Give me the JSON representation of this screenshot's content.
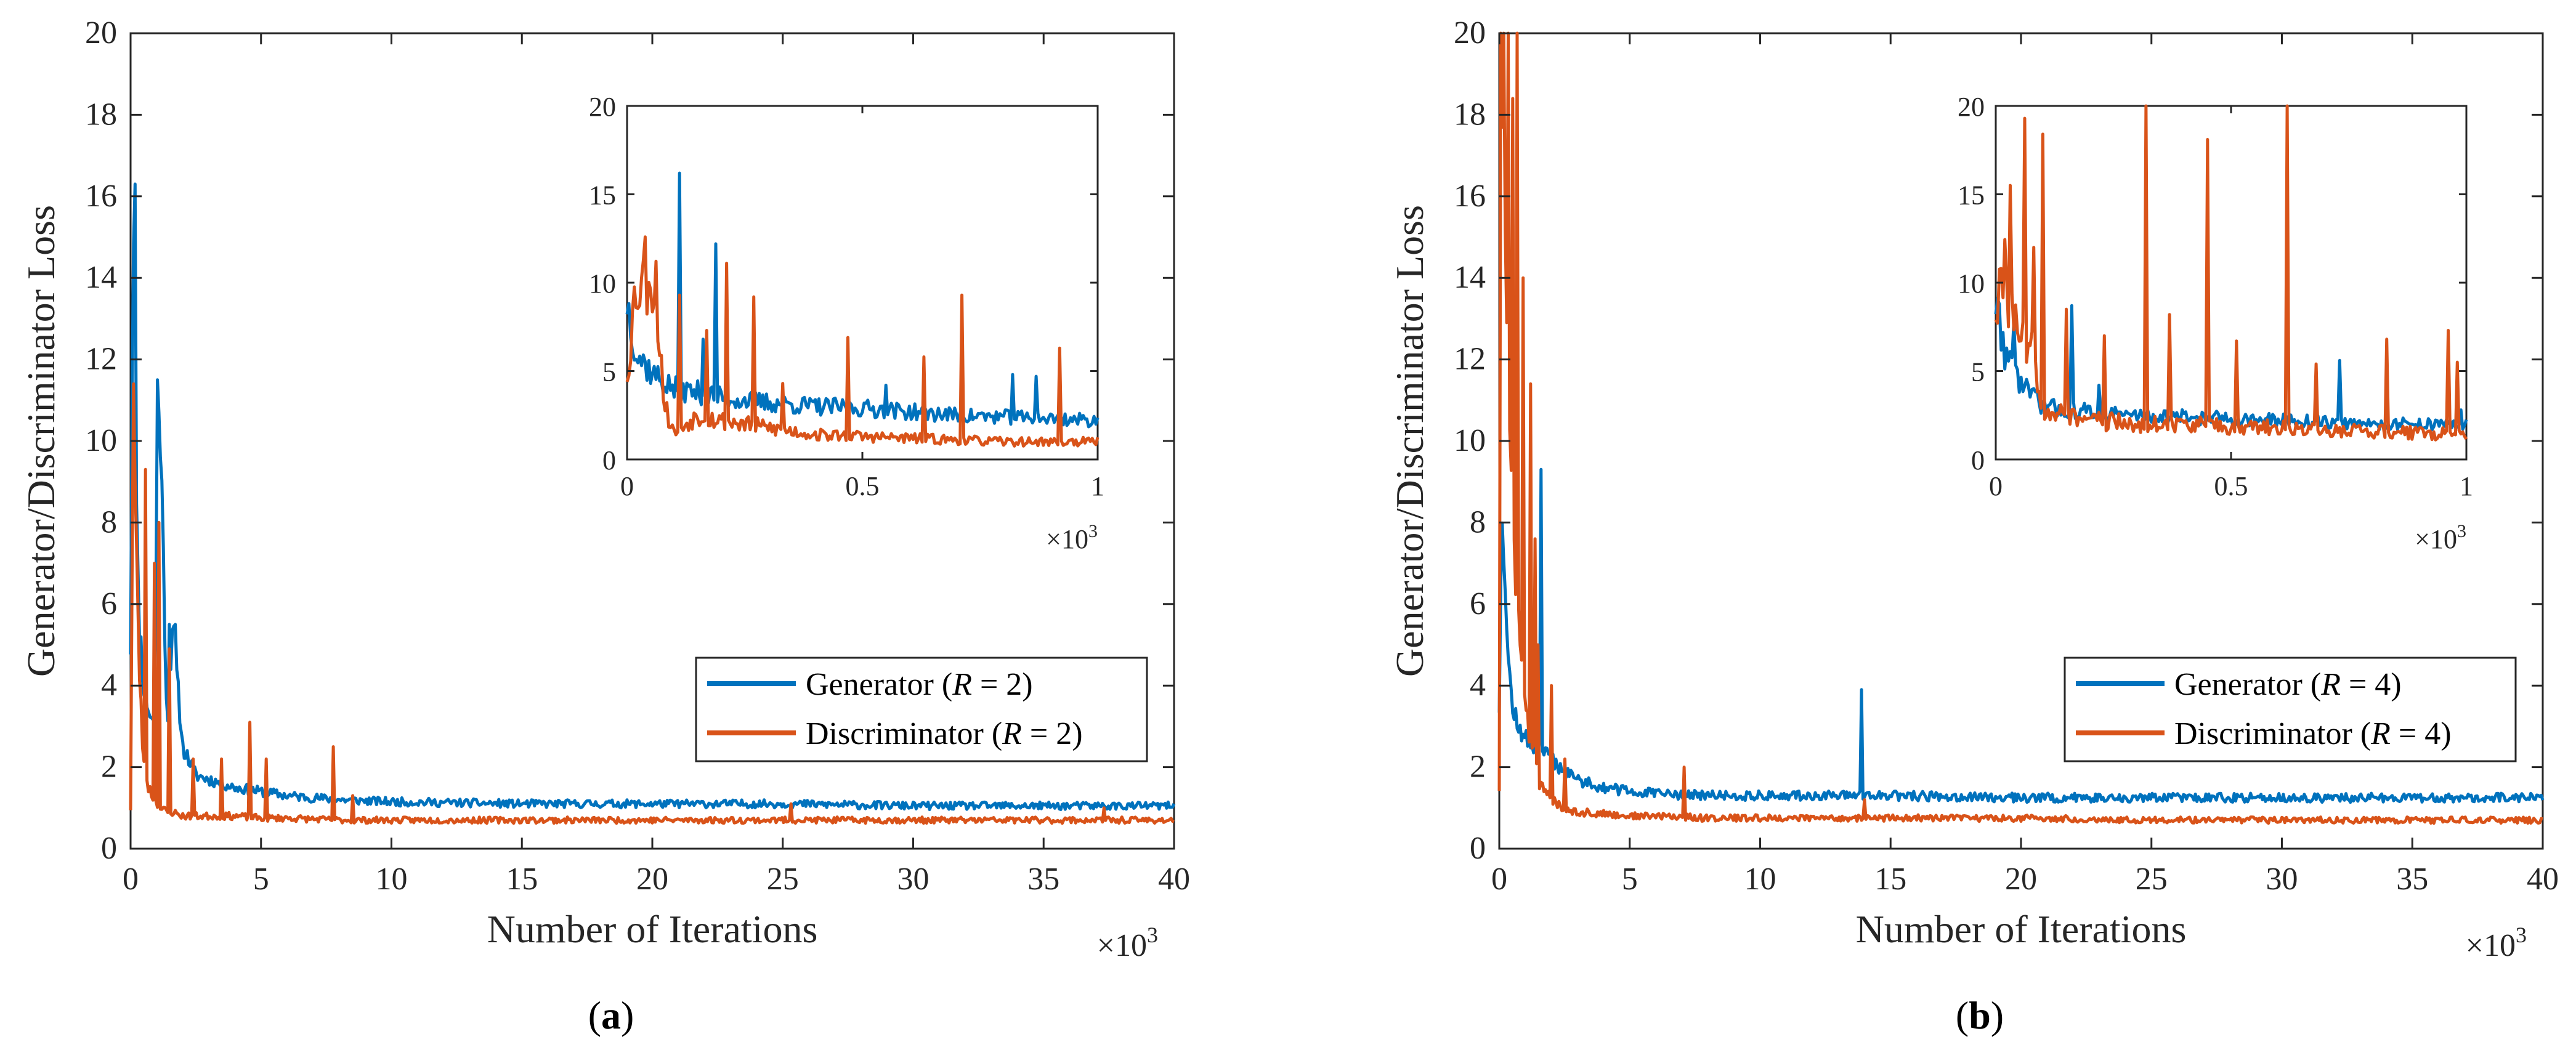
{
  "colors": {
    "generator": "#0072BD",
    "discriminator": "#D95319",
    "axis": "#262626",
    "background": "#ffffff"
  },
  "chart_data": [
    {
      "type": "line",
      "caption_label": "a",
      "ylabel": "Generator/Discriminator Loss",
      "xlabel": "Number of Iterations",
      "x_multiplier_base": "×10",
      "x_multiplier_exp": "3",
      "xlim": [
        0,
        40
      ],
      "ylim": [
        0,
        20
      ],
      "xticks": [
        "0",
        "5",
        "10",
        "15",
        "20",
        "25",
        "30",
        "35",
        "40"
      ],
      "yticks": [
        "0",
        "2",
        "4",
        "6",
        "8",
        "10",
        "12",
        "14",
        "16",
        "18",
        "20"
      ],
      "legend_placement": "lower-right",
      "series": [
        {
          "name": "Generator",
          "legend_label": "Generator (",
          "legend_param": "R",
          "legend_value": " = 2)",
          "x": [
            0,
            0.1,
            0.2,
            0.3,
            0.5,
            0.7,
            0.9,
            1.1,
            1.4,
            1.6,
            2,
            2.5,
            3,
            4,
            5,
            6,
            8,
            10,
            15,
            20,
            25,
            30,
            35,
            40
          ],
          "y": [
            5,
            16.3,
            9,
            6,
            4,
            3.4,
            3,
            11.5,
            3,
            5.5,
            2.5,
            1.8,
            1.7,
            1.5,
            1.4,
            1.3,
            1.2,
            1.15,
            1.1,
            1.1,
            1.1,
            1.05,
            1.05,
            1.05
          ],
          "spikes": [
            [
              0.15,
              16.3
            ],
            [
              1.05,
              11.5
            ],
            [
              1.5,
              5.5
            ],
            [
              1.7,
              5.5
            ]
          ]
        },
        {
          "name": "Discriminator",
          "legend_label": "Discriminator (",
          "legend_param": "R",
          "legend_value": " = 2)",
          "x": [
            0,
            0.1,
            0.2,
            0.3,
            0.5,
            0.7,
            0.9,
            1.1,
            1.4,
            1.6,
            2,
            2.5,
            3,
            4,
            5,
            6,
            8,
            10,
            15,
            20,
            25,
            30,
            35,
            40
          ],
          "y": [
            1,
            11.4,
            8,
            5,
            2,
            1.5,
            1.2,
            1.0,
            0.9,
            0.9,
            0.8,
            0.8,
            0.8,
            0.8,
            0.75,
            0.75,
            0.7,
            0.7,
            0.7,
            0.7,
            0.7,
            0.7,
            0.7,
            0.7
          ],
          "spikes": [
            [
              0.1,
              11.4
            ],
            [
              0.6,
              9.3
            ],
            [
              0.9,
              7.0
            ],
            [
              1.1,
              8.0
            ],
            [
              1.5,
              4.9
            ],
            [
              2.4,
              2.2
            ],
            [
              3.5,
              2.2
            ],
            [
              4.6,
              3.1
            ],
            [
              5.2,
              2.2
            ],
            [
              7.8,
              2.5
            ],
            [
              8.5,
              1.3
            ],
            [
              25.3,
              1.1
            ],
            [
              37.3,
              1.0
            ]
          ]
        }
      ],
      "inset": {
        "xlim": [
          0,
          1
        ],
        "ylim": [
          0,
          20
        ],
        "xticks": [
          "0",
          "0.5",
          "1"
        ],
        "yticks": [
          "0",
          "5",
          "10",
          "15",
          "20"
        ],
        "x_multiplier_base": "×10",
        "x_multiplier_exp": "3",
        "generator": {
          "x": [
            0,
            0.02,
            0.05,
            0.08,
            0.1,
            0.15,
            0.2,
            0.3,
            0.4,
            0.5,
            0.6,
            0.7,
            0.8,
            0.9,
            1.0
          ],
          "y": [
            9,
            6,
            5,
            4.3,
            4,
            3.8,
            3.5,
            3.2,
            3,
            2.9,
            2.7,
            2.5,
            2.4,
            2.3,
            2.2
          ],
          "spikes": [
            [
              0.11,
              16.2
            ],
            [
              0.19,
              12.2
            ],
            [
              0.16,
              6.8
            ],
            [
              0.55,
              4.2
            ],
            [
              0.82,
              4.8
            ],
            [
              0.87,
              4.7
            ]
          ]
        },
        "discriminator": {
          "x": [
            0,
            0.02,
            0.04,
            0.06,
            0.08,
            0.1,
            0.15,
            0.2,
            0.3,
            0.4,
            0.5,
            0.6,
            0.7,
            0.8,
            0.9,
            1.0
          ],
          "y": [
            5,
            10,
            10.8,
            10.2,
            3,
            1.5,
            2.5,
            2.2,
            1.8,
            1.4,
            1.3,
            1.2,
            1.1,
            1.0,
            1.0,
            1.0
          ],
          "spikes": [
            [
              0.11,
              9.3
            ],
            [
              0.17,
              7.3
            ],
            [
              0.21,
              11.1
            ],
            [
              0.27,
              9.2
            ],
            [
              0.33,
              4.3
            ],
            [
              0.47,
              6.9
            ],
            [
              0.63,
              5.8
            ],
            [
              0.71,
              9.3
            ],
            [
              0.92,
              6.3
            ]
          ]
        }
      }
    },
    {
      "type": "line",
      "caption_label": "b",
      "ylabel": "Generator/Discriminator Loss",
      "xlabel": "Number of Iterations",
      "x_multiplier_base": "×10",
      "x_multiplier_exp": "3",
      "xlim": [
        0,
        40
      ],
      "ylim": [
        0,
        20
      ],
      "xticks": [
        "0",
        "5",
        "10",
        "15",
        "20",
        "25",
        "30",
        "35",
        "40"
      ],
      "yticks": [
        "0",
        "2",
        "4",
        "6",
        "8",
        "10",
        "12",
        "14",
        "16",
        "18",
        "20"
      ],
      "legend_placement": "lower-right",
      "series": [
        {
          "name": "Generator",
          "legend_label": "Generator (",
          "legend_param": "R",
          "legend_value": " = 4)",
          "x": [
            0,
            0.1,
            0.2,
            0.3,
            0.5,
            0.7,
            0.9,
            1.1,
            1.4,
            1.6,
            2,
            2.5,
            3,
            4,
            5,
            6,
            8,
            10,
            13.8,
            14,
            15,
            20,
            25,
            30,
            35,
            40
          ],
          "y": [
            3.5,
            9,
            7,
            5,
            3.5,
            3,
            2.8,
            2.6,
            2.5,
            2.4,
            2.2,
            1.9,
            1.7,
            1.5,
            1.4,
            1.35,
            1.3,
            1.3,
            1.3,
            1.3,
            1.3,
            1.25,
            1.25,
            1.25,
            1.25,
            1.25
          ],
          "spikes": [
            [
              1.6,
              9.3
            ],
            [
              13.9,
              3.9
            ]
          ]
        },
        {
          "name": "Discriminator",
          "legend_label": "Discriminator (",
          "legend_param": "R",
          "legend_value": " = 4)",
          "x": [
            0,
            0.1,
            0.2,
            0.3,
            0.5,
            0.7,
            0.9,
            1.1,
            1.4,
            1.6,
            2,
            2.5,
            3,
            4,
            5,
            6,
            8,
            10,
            15,
            20,
            25,
            30,
            35,
            40
          ],
          "y": [
            1.5,
            19,
            17,
            12,
            8,
            6,
            4,
            3,
            2,
            1.5,
            1.2,
            1.0,
            0.9,
            0.85,
            0.8,
            0.8,
            0.75,
            0.75,
            0.75,
            0.75,
            0.7,
            0.7,
            0.7,
            0.7
          ],
          "spikes": [
            [
              0.05,
              20
            ],
            [
              0.15,
              20
            ],
            [
              0.35,
              20
            ],
            [
              0.5,
              18.4
            ],
            [
              0.7,
              20
            ],
            [
              0.9,
              14
            ],
            [
              1.2,
              11.4
            ],
            [
              1.4,
              7.6
            ],
            [
              1.5,
              5
            ],
            [
              2.0,
              4
            ],
            [
              2.5,
              2.2
            ],
            [
              7.1,
              2.0
            ],
            [
              14.0,
              1.2
            ]
          ]
        }
      ],
      "inset": {
        "xlim": [
          0,
          1
        ],
        "ylim": [
          0,
          20
        ],
        "xticks": [
          "0",
          "0.5",
          "1"
        ],
        "yticks": [
          "0",
          "5",
          "10",
          "15",
          "20"
        ],
        "x_multiplier_base": "×10",
        "x_multiplier_exp": "3",
        "generator": {
          "x": [
            0,
            0.02,
            0.05,
            0.08,
            0.1,
            0.15,
            0.2,
            0.3,
            0.4,
            0.5,
            0.6,
            0.7,
            0.8,
            0.9,
            1.0
          ],
          "y": [
            9,
            6,
            4.5,
            3.5,
            3,
            2.8,
            2.7,
            2.5,
            2.4,
            2.3,
            2.2,
            2.1,
            2.0,
            2.0,
            2.0
          ],
          "spikes": [
            [
              0.04,
              7.8
            ],
            [
              0.16,
              8.7
            ],
            [
              0.22,
              4.2
            ],
            [
              0.73,
              5.6
            ],
            [
              0.99,
              2.8
            ]
          ]
        },
        "discriminator": {
          "x": [
            0,
            0.02,
            0.04,
            0.06,
            0.08,
            0.1,
            0.15,
            0.2,
            0.3,
            0.4,
            0.5,
            0.6,
            0.7,
            0.8,
            0.9,
            1.0
          ],
          "y": [
            9,
            10,
            8,
            7,
            6,
            3,
            2.5,
            2.2,
            2.0,
            2.0,
            1.8,
            1.8,
            1.6,
            1.6,
            1.5,
            1.4
          ],
          "spikes": [
            [
              0.01,
              10.8
            ],
            [
              0.03,
              15.5
            ],
            [
              0.06,
              19.3
            ],
            [
              0.08,
              12
            ],
            [
              0.1,
              18.4
            ],
            [
              0.15,
              8.5
            ],
            [
              0.23,
              7
            ],
            [
              0.32,
              20
            ],
            [
              0.37,
              8.2
            ],
            [
              0.45,
              18.1
            ],
            [
              0.51,
              6.7
            ],
            [
              0.62,
              20
            ],
            [
              0.68,
              5.4
            ],
            [
              0.83,
              6.8
            ],
            [
              0.96,
              7.3
            ],
            [
              0.98,
              5.5
            ]
          ]
        }
      }
    }
  ]
}
